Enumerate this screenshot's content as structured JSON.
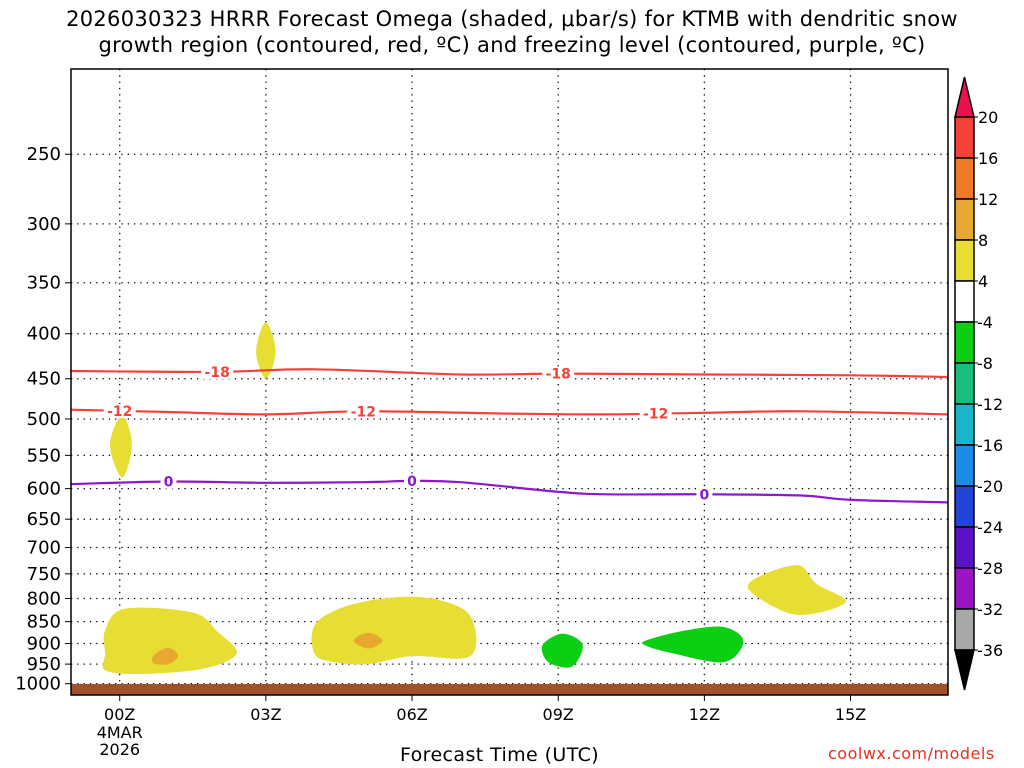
{
  "chart_data": {
    "type": "contour",
    "title_line1": "2026030323 HRRR Forecast Omega (shaded, μbar/s) for KTMB with dendritic snow",
    "title_line2": "growth region (contoured, red, ºC) and freezing level (contoured, purple, ºC)",
    "xlabel": "Forecast Time (UTC)",
    "credit": "coolwx.com/models",
    "x_ticks": [
      "00Z",
      "03Z",
      "06Z",
      "09Z",
      "12Z",
      "15Z"
    ],
    "x_tick_hours": [
      0,
      3,
      6,
      9,
      12,
      15
    ],
    "x_date": [
      "4MAR",
      "2026"
    ],
    "xlim_hours": [
      -1,
      17
    ],
    "y_ticks": [
      250,
      300,
      350,
      400,
      450,
      500,
      550,
      600,
      650,
      700,
      750,
      800,
      850,
      900,
      950,
      1000
    ],
    "ylim_hpa": [
      200,
      1030
    ],
    "colorbar": {
      "labels": [
        "20",
        "16",
        "12",
        "8",
        "4",
        "-4",
        "-8",
        "-12",
        "-16",
        "-20",
        "-24",
        "-28",
        "-32",
        "-36"
      ],
      "colors": [
        "#e8134e",
        "#f4423b",
        "#ee7a2a",
        "#e8a830",
        "#e8dd33",
        "#ffffff",
        "#0ccf13",
        "#18bf7b",
        "#19b6c9",
        "#1e8ae8",
        "#2444d9",
        "#5a12c9",
        "#9b14c6",
        "#a8a8a8",
        "#000000"
      ]
    },
    "contours": [
      {
        "label": "-18",
        "color": "#f4423b",
        "points": [
          [
            -1,
            441
          ],
          [
            2,
            442
          ],
          [
            4,
            439
          ],
          [
            7,
            445
          ],
          [
            9,
            444
          ],
          [
            12,
            445
          ],
          [
            15,
            446
          ],
          [
            17,
            448
          ]
        ],
        "label_hours": [
          2,
          9
        ]
      },
      {
        "label": "-12",
        "color": "#f4423b",
        "points": [
          [
            -1,
            488
          ],
          [
            1,
            491
          ],
          [
            3,
            494
          ],
          [
            5,
            490
          ],
          [
            8,
            493
          ],
          [
            10,
            494
          ],
          [
            12,
            492
          ],
          [
            14,
            490
          ],
          [
            17,
            494
          ]
        ],
        "label_hours": [
          0,
          5,
          11
        ]
      },
      {
        "label": "0",
        "color": "#8c17cc",
        "points": [
          [
            -1,
            593
          ],
          [
            1,
            589
          ],
          [
            3,
            591
          ],
          [
            5,
            590
          ],
          [
            6,
            588
          ],
          [
            7,
            590
          ],
          [
            9,
            605
          ],
          [
            10,
            609
          ],
          [
            12,
            609
          ],
          [
            14,
            611
          ],
          [
            15,
            618
          ],
          [
            17,
            622
          ]
        ],
        "label_hours": [
          1,
          6,
          12
        ]
      }
    ],
    "omega_regions": [
      {
        "value": 6,
        "color": "#e8dd33",
        "points": [
          [
            2.8,
            419
          ],
          [
            3.0,
            388
          ],
          [
            3.2,
            419
          ],
          [
            3.0,
            450
          ]
        ]
      },
      {
        "value": 6,
        "color": "#e8dd33",
        "points": [
          [
            -0.2,
            535
          ],
          [
            0.05,
            495
          ],
          [
            0.25,
            535
          ],
          [
            0.05,
            583
          ]
        ]
      },
      {
        "value": 6,
        "color": "#e8dd33",
        "points": [
          [
            -0.3,
            870
          ],
          [
            0.1,
            822
          ],
          [
            1.5,
            830
          ],
          [
            2.0,
            872
          ],
          [
            2.4,
            924
          ],
          [
            1.7,
            962
          ],
          [
            0.4,
            975
          ],
          [
            -0.3,
            965
          ],
          [
            -0.3,
            925
          ]
        ]
      },
      {
        "value": 10,
        "color": "#e8a830",
        "points": [
          [
            0.7,
            928
          ],
          [
            1.0,
            910
          ],
          [
            1.2,
            930
          ],
          [
            1.0,
            950
          ],
          [
            0.7,
            948
          ]
        ]
      },
      {
        "value": 6,
        "color": "#e8dd33",
        "points": [
          [
            4.0,
            858
          ],
          [
            4.6,
            818
          ],
          [
            5.6,
            798
          ],
          [
            6.5,
            802
          ],
          [
            7.2,
            838
          ],
          [
            7.2,
            930
          ],
          [
            6.0,
            930
          ],
          [
            5.1,
            950
          ],
          [
            4.4,
            945
          ],
          [
            4.0,
            925
          ]
        ]
      },
      {
        "value": 10,
        "color": "#e8a830",
        "points": [
          [
            4.8,
            893
          ],
          [
            5.1,
            875
          ],
          [
            5.4,
            893
          ],
          [
            5.1,
            912
          ]
        ]
      },
      {
        "value": -6,
        "color": "#0ccf13",
        "points": [
          [
            8.7,
            900
          ],
          [
            9.1,
            877
          ],
          [
            9.5,
            903
          ],
          [
            9.3,
            955
          ],
          [
            8.9,
            952
          ],
          [
            8.7,
            930
          ]
        ]
      },
      {
        "value": -6,
        "color": "#0ccf13",
        "points": [
          [
            10.8,
            893
          ],
          [
            11.6,
            870
          ],
          [
            12.4,
            862
          ],
          [
            12.8,
            895
          ],
          [
            12.4,
            945
          ],
          [
            11.3,
            922
          ],
          [
            10.8,
            905
          ]
        ]
      },
      {
        "value": 6,
        "color": "#e8dd33",
        "points": [
          [
            13.0,
            762
          ],
          [
            13.9,
            733
          ],
          [
            14.3,
            770
          ],
          [
            14.9,
            808
          ],
          [
            13.9,
            835
          ],
          [
            13.0,
            790
          ]
        ]
      }
    ]
  }
}
